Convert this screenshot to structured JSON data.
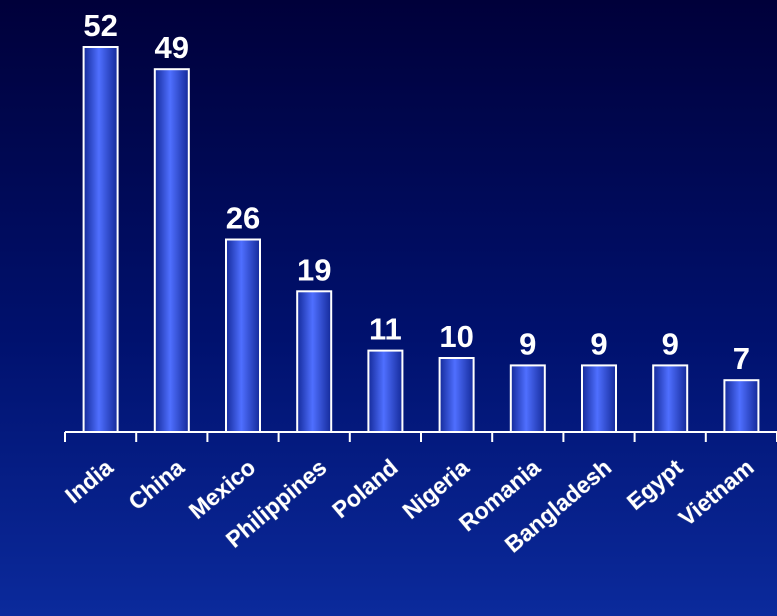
{
  "chart_data": {
    "type": "bar",
    "categories": [
      "India",
      "China",
      "Mexico",
      "Philippines",
      "Poland",
      "Nigeria",
      "Romania",
      "Bangladesh",
      "Egypt",
      "Vietnam"
    ],
    "values": [
      52,
      49,
      26,
      19,
      11,
      10,
      9,
      9,
      9,
      7
    ],
    "value_labels": [
      "52",
      "49",
      "26",
      "19",
      "11",
      "10",
      "9",
      "9",
      "9",
      "7"
    ],
    "ylim": [
      0,
      52
    ],
    "grid": false,
    "legend": "none",
    "colors": {
      "bar_light": "#4f6fff",
      "bar_mid": "#2f4dea",
      "bar_dark": "#142a9a",
      "bar_outline": "#ffffff",
      "axis": "#ffffff",
      "text": "#ffffff"
    }
  }
}
